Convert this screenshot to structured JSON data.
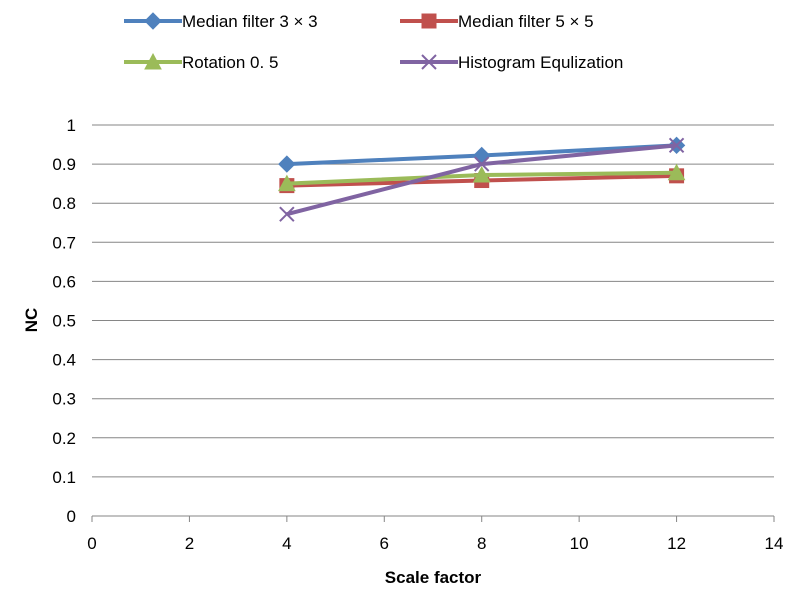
{
  "chart_data": {
    "type": "line",
    "title": "",
    "xlabel": "Scale factor",
    "ylabel": "NC",
    "xlim": [
      0,
      14
    ],
    "ylim": [
      0,
      1
    ],
    "x_ticks": [
      "0",
      "2",
      "4",
      "6",
      "8",
      "10",
      "12",
      "14"
    ],
    "y_ticks": [
      "0",
      "0.1",
      "0.2",
      "0.3",
      "0.4",
      "0.5",
      "0.6",
      "0.7",
      "0.8",
      "0.9",
      "1"
    ],
    "grid": "horizontal",
    "legend_position": "top",
    "series": [
      {
        "name": "Median filter 3 × 3",
        "color": "#4f81bd",
        "marker": "diamond",
        "x": [
          4,
          8,
          12
        ],
        "y": [
          0.9,
          0.922,
          0.948
        ]
      },
      {
        "name": "Median  filter 5 × 5",
        "color": "#c0504d",
        "marker": "square",
        "x": [
          4,
          8,
          12
        ],
        "y": [
          0.845,
          0.858,
          0.87
        ]
      },
      {
        "name": "Rotation 0. 5",
        "color": "#9bbb59",
        "marker": "triangle",
        "x": [
          4,
          8,
          12
        ],
        "y": [
          0.85,
          0.872,
          0.878
        ]
      },
      {
        "name": "Histogram Equlization",
        "color": "#8064a2",
        "marker": "x",
        "x": [
          4,
          8,
          12
        ],
        "y": [
          0.772,
          0.9,
          0.948
        ]
      }
    ]
  }
}
